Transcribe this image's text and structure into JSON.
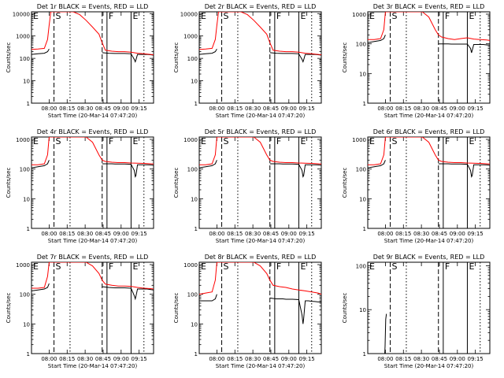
{
  "colors": {
    "events": "#000000",
    "lld": "#ff0000",
    "background": "#ffffff",
    "axis": "#000000"
  },
  "common": {
    "ylabel": "Counts/sec",
    "xlabel": "Start Time (20-Mar-14 07:47:20)",
    "x_ticks": [
      "08:00",
      "08:15",
      "08:30",
      "08:45",
      "09:00",
      "09:15"
    ],
    "y_scale": "log",
    "x_range_minutes": [
      -5,
      33
    ],
    "vertical_markers": [
      {
        "x": 2.0,
        "style": "dashed",
        "label": "S"
      },
      {
        "x": 7.0,
        "style": "dotted",
        "label": ""
      },
      {
        "x": 17.0,
        "style": "dashed",
        "label": ""
      },
      {
        "x": 18.5,
        "style": "solid",
        "label": "F"
      },
      {
        "x": 26.0,
        "style": "solid",
        "label": "E"
      },
      {
        "x": 30.0,
        "style": "dotted",
        "label": ""
      }
    ],
    "e_left_label": "E"
  },
  "chart_data": [
    {
      "type": "line",
      "title": "Det 1r BLACK = Events, RED = LLD",
      "ylim": [
        1,
        12000
      ],
      "y_ticks": [
        1,
        10,
        100,
        1000,
        10000
      ],
      "y_tick_labels": [
        "1",
        "10",
        "100",
        "1000",
        "10000"
      ],
      "series": [
        {
          "name": "BLACK",
          "color": "#000000",
          "x": [
            -5,
            -3,
            -1,
            0,
            0.5
          ],
          "y": [
            150,
            160,
            170,
            200,
            260
          ]
        },
        {
          "name": "BLACK",
          "color": "#000000",
          "x": [
            17,
            18,
            19,
            20,
            21,
            22,
            24,
            26,
            27,
            27.3,
            27.5,
            28,
            29,
            30,
            31,
            32,
            33
          ],
          "y": [
            180,
            175,
            170,
            168,
            165,
            165,
            165,
            160,
            90,
            70,
            85,
            150,
            150,
            150,
            150,
            145,
            140
          ]
        },
        {
          "name": "RED",
          "color": "#ff0000",
          "x": [
            -5,
            -3,
            -1,
            0,
            0.5,
            1,
            2,
            4,
            6,
            8,
            10,
            12,
            14,
            16,
            17,
            18,
            20,
            22,
            24,
            26,
            28,
            30,
            32,
            33
          ],
          "y": [
            250,
            260,
            280,
            700,
            3000,
            12000,
            12000,
            12000,
            12000,
            12000,
            9000,
            5000,
            2500,
            1200,
            500,
            230,
            210,
            200,
            200,
            190,
            170,
            160,
            150,
            145
          ]
        }
      ]
    },
    {
      "type": "line",
      "title": "Det 2r BLACK = Events, RED = LLD",
      "ylim": [
        1,
        12000
      ],
      "y_ticks": [
        1,
        10,
        100,
        1000,
        10000
      ],
      "y_tick_labels": [
        "1",
        "10",
        "100",
        "1000",
        "10000"
      ],
      "series": [
        {
          "name": "BLACK",
          "color": "#000000",
          "x": [
            -5,
            -3,
            -1,
            0,
            0.5
          ],
          "y": [
            150,
            160,
            170,
            200,
            260
          ]
        },
        {
          "name": "BLACK",
          "color": "#000000",
          "x": [
            17,
            18,
            19,
            20,
            21,
            22,
            24,
            26,
            27,
            27.3,
            27.5,
            28,
            29,
            30,
            31,
            32,
            33
          ],
          "y": [
            180,
            175,
            170,
            168,
            165,
            165,
            165,
            160,
            90,
            70,
            85,
            150,
            150,
            150,
            150,
            145,
            140
          ]
        },
        {
          "name": "RED",
          "color": "#ff0000",
          "x": [
            -5,
            -3,
            -1,
            0,
            0.5,
            1,
            2,
            4,
            6,
            8,
            10,
            12,
            14,
            16,
            17,
            18,
            20,
            22,
            24,
            26,
            28,
            30,
            32,
            33
          ],
          "y": [
            250,
            260,
            280,
            700,
            3000,
            12000,
            12000,
            12000,
            12000,
            12000,
            9000,
            5000,
            2500,
            1200,
            500,
            230,
            210,
            200,
            200,
            190,
            170,
            160,
            150,
            145
          ]
        }
      ]
    },
    {
      "type": "line",
      "title": "Det 3r BLACK = Events, RED = LLD",
      "ylim": [
        1,
        1200
      ],
      "y_ticks": [
        1,
        10,
        100,
        1000
      ],
      "y_tick_labels": [
        "1",
        "10",
        "100",
        "1000"
      ],
      "series": [
        {
          "name": "BLACK",
          "color": "#000000",
          "x": [
            -5,
            -3,
            -1,
            0,
            0.5
          ],
          "y": [
            110,
            120,
            130,
            150,
            200
          ]
        },
        {
          "name": "BLACK",
          "color": "#000000",
          "x": [
            17,
            18,
            19,
            20,
            21,
            22,
            24,
            26,
            27,
            27.3,
            27.5,
            28,
            29,
            30,
            31,
            32,
            33
          ],
          "y": [
            100,
            100,
            100,
            100,
            98,
            98,
            98,
            98,
            70,
            50,
            60,
            95,
            95,
            95,
            95,
            92,
            90
          ]
        },
        {
          "name": "RED",
          "color": "#ff0000",
          "x": [
            -5,
            -3,
            -1,
            0,
            0.5,
            1,
            2,
            4,
            6,
            8,
            10,
            12,
            14,
            16,
            17,
            18,
            20,
            22,
            24,
            26,
            28,
            30,
            32,
            33
          ],
          "y": [
            140,
            140,
            150,
            300,
            1200,
            1200,
            1200,
            1200,
            1200,
            1200,
            1200,
            1200,
            800,
            300,
            200,
            170,
            150,
            140,
            150,
            160,
            145,
            140,
            135,
            130
          ]
        }
      ]
    },
    {
      "type": "line",
      "title": "Det 4r BLACK = Events, RED = LLD",
      "ylim": [
        1,
        1200
      ],
      "y_ticks": [
        1,
        10,
        100,
        1000
      ],
      "y_tick_labels": [
        "1",
        "10",
        "100",
        "1000"
      ],
      "series": [
        {
          "name": "BLACK",
          "color": "#000000",
          "x": [
            -5,
            -3,
            -1,
            0,
            0.5
          ],
          "y": [
            110,
            120,
            130,
            150,
            200
          ]
        },
        {
          "name": "BLACK",
          "color": "#000000",
          "x": [
            17,
            18,
            19,
            20,
            21,
            22,
            24,
            26,
            27,
            27.3,
            27.5,
            28,
            29,
            30,
            31,
            32,
            33
          ],
          "y": [
            150,
            150,
            150,
            150,
            148,
            148,
            148,
            145,
            90,
            55,
            60,
            140,
            140,
            140,
            140,
            138,
            135
          ]
        },
        {
          "name": "RED",
          "color": "#ff0000",
          "x": [
            -5,
            -3,
            -1,
            0,
            0.5,
            1,
            2,
            4,
            6,
            8,
            10,
            12,
            14,
            16,
            17,
            18,
            20,
            22,
            24,
            26,
            28,
            30,
            32,
            33
          ],
          "y": [
            140,
            140,
            150,
            300,
            1200,
            1200,
            1200,
            1200,
            1200,
            1200,
            1200,
            1200,
            800,
            300,
            200,
            180,
            170,
            165,
            165,
            160,
            158,
            155,
            150,
            148
          ]
        }
      ]
    },
    {
      "type": "line",
      "title": "Det 5r BLACK = Events, RED = LLD",
      "ylim": [
        1,
        1200
      ],
      "y_ticks": [
        1,
        10,
        100,
        1000
      ],
      "y_tick_labels": [
        "1",
        "10",
        "100",
        "1000"
      ],
      "series": [
        {
          "name": "BLACK",
          "color": "#000000",
          "x": [
            -5,
            -3,
            -1,
            0,
            0.5
          ],
          "y": [
            110,
            120,
            130,
            150,
            200
          ]
        },
        {
          "name": "BLACK",
          "color": "#000000",
          "x": [
            17,
            18,
            19,
            20,
            21,
            22,
            24,
            26,
            27,
            27.3,
            27.5,
            28,
            29,
            30,
            31,
            32,
            33
          ],
          "y": [
            150,
            150,
            150,
            150,
            148,
            148,
            148,
            145,
            90,
            55,
            60,
            140,
            140,
            140,
            140,
            138,
            135
          ]
        },
        {
          "name": "RED",
          "color": "#ff0000",
          "x": [
            -5,
            -3,
            -1,
            0,
            0.5,
            1,
            2,
            4,
            6,
            8,
            10,
            12,
            14,
            16,
            17,
            18,
            20,
            22,
            24,
            26,
            28,
            30,
            32,
            33
          ],
          "y": [
            140,
            140,
            150,
            300,
            1200,
            1200,
            1200,
            1200,
            1200,
            1200,
            1200,
            1200,
            800,
            300,
            200,
            180,
            170,
            165,
            165,
            160,
            158,
            155,
            150,
            148
          ]
        }
      ]
    },
    {
      "type": "line",
      "title": "Det 6r BLACK = Events, RED = LLD",
      "ylim": [
        1,
        1200
      ],
      "y_ticks": [
        1,
        10,
        100,
        1000
      ],
      "y_tick_labels": [
        "1",
        "10",
        "100",
        "1000"
      ],
      "series": [
        {
          "name": "BLACK",
          "color": "#000000",
          "x": [
            -5,
            -3,
            -1,
            0,
            0.5
          ],
          "y": [
            110,
            120,
            130,
            150,
            200
          ]
        },
        {
          "name": "BLACK",
          "color": "#000000",
          "x": [
            17,
            18,
            19,
            20,
            21,
            22,
            24,
            26,
            27,
            27.3,
            27.5,
            28,
            29,
            30,
            31,
            32,
            33
          ],
          "y": [
            150,
            150,
            150,
            150,
            148,
            148,
            148,
            145,
            90,
            55,
            60,
            140,
            140,
            140,
            140,
            138,
            135
          ]
        },
        {
          "name": "RED",
          "color": "#ff0000",
          "x": [
            -5,
            -3,
            -1,
            0,
            0.5,
            1,
            2,
            4,
            6,
            8,
            10,
            12,
            14,
            16,
            17,
            18,
            20,
            22,
            24,
            26,
            28,
            30,
            32,
            33
          ],
          "y": [
            140,
            140,
            150,
            300,
            1200,
            1200,
            1200,
            1200,
            1200,
            1200,
            1200,
            1200,
            800,
            300,
            200,
            180,
            170,
            165,
            165,
            160,
            158,
            155,
            150,
            148
          ]
        }
      ]
    },
    {
      "type": "line",
      "title": "Det 7r BLACK = Events, RED = LLD",
      "ylim": [
        1,
        1200
      ],
      "y_ticks": [
        1,
        10,
        100,
        1000
      ],
      "y_tick_labels": [
        "1",
        "10",
        "100",
        "1000"
      ],
      "series": [
        {
          "name": "BLACK",
          "color": "#000000",
          "x": [
            -5,
            -3,
            -1,
            0,
            0.5
          ],
          "y": [
            130,
            140,
            150,
            170,
            230
          ]
        },
        {
          "name": "BLACK",
          "color": "#000000",
          "x": [
            17,
            18,
            19,
            20,
            21,
            22,
            24,
            26,
            27,
            27.3,
            27.5,
            28,
            29,
            30,
            31,
            32,
            33
          ],
          "y": [
            180,
            175,
            170,
            168,
            165,
            165,
            165,
            160,
            90,
            70,
            85,
            150,
            150,
            150,
            150,
            145,
            140
          ]
        },
        {
          "name": "RED",
          "color": "#ff0000",
          "x": [
            -5,
            -3,
            -1,
            0,
            0.5,
            1,
            2,
            4,
            6,
            8,
            10,
            12,
            14,
            16,
            17,
            18,
            20,
            22,
            24,
            26,
            28,
            30,
            32,
            33
          ],
          "y": [
            160,
            160,
            170,
            400,
            1200,
            1200,
            1200,
            1200,
            1200,
            1200,
            1200,
            1200,
            900,
            500,
            300,
            220,
            200,
            190,
            190,
            185,
            170,
            160,
            155,
            150
          ]
        }
      ]
    },
    {
      "type": "line",
      "title": "Det 8r BLACK = Events, RED = LLD",
      "ylim": [
        1,
        1200
      ],
      "y_ticks": [
        1,
        10,
        100,
        1000
      ],
      "y_tick_labels": [
        "1",
        "10",
        "100",
        "1000"
      ],
      "series": [
        {
          "name": "BLACK",
          "color": "#000000",
          "x": [
            -5,
            -3,
            -1,
            0,
            0.5
          ],
          "y": [
            60,
            60,
            60,
            70,
            100
          ]
        },
        {
          "name": "BLACK",
          "color": "#000000",
          "x": [
            17,
            18,
            19,
            20,
            21,
            22,
            24,
            26,
            27,
            27.3,
            27.5,
            28,
            29,
            30,
            31,
            32,
            33
          ],
          "y": [
            75,
            72,
            70,
            70,
            70,
            68,
            68,
            66,
            20,
            10,
            15,
            60,
            60,
            58,
            57,
            55,
            55
          ]
        },
        {
          "name": "RED",
          "color": "#ff0000",
          "x": [
            -5,
            -3,
            -1,
            0,
            0.5,
            1,
            2,
            4,
            6,
            8,
            10,
            12,
            14,
            16,
            17,
            18,
            20,
            22,
            24,
            26,
            28,
            30,
            32,
            33
          ],
          "y": [
            100,
            110,
            120,
            300,
            1200,
            1200,
            1200,
            1200,
            1200,
            1200,
            1200,
            1200,
            900,
            500,
            300,
            200,
            180,
            170,
            150,
            140,
            130,
            120,
            110,
            100
          ]
        }
      ]
    },
    {
      "type": "line",
      "title": "Det 9r BLACK = Events, RED = LLD",
      "ylim": [
        1,
        120
      ],
      "y_ticks": [
        1,
        10,
        100
      ],
      "y_tick_labels": [
        "1",
        "10",
        "100"
      ],
      "series": [
        {
          "name": "BLACK",
          "color": "#000000",
          "x": [
            0.3,
            0.4,
            0.6,
            0.8
          ],
          "y": [
            1,
            1.5,
            6,
            8
          ]
        },
        {
          "name": "RED",
          "color": "#ff0000",
          "x": [],
          "y": []
        }
      ]
    }
  ]
}
